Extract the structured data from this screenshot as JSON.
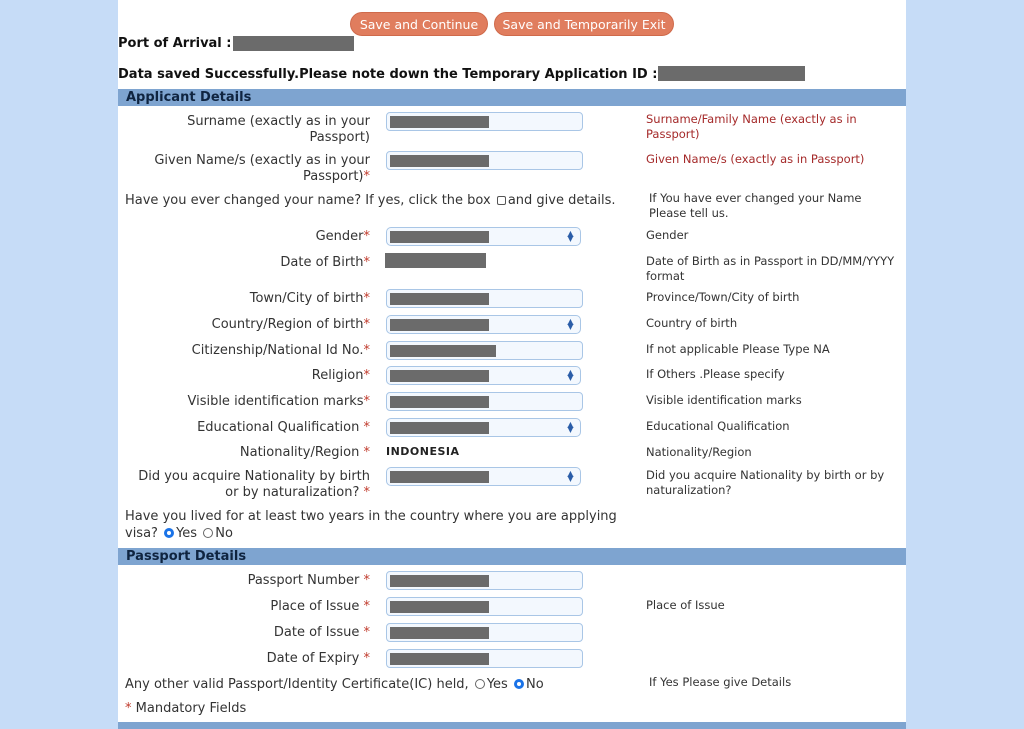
{
  "buttons": {
    "save_continue": "Save and Continue",
    "save_exit": "Save and Temporarily Exit"
  },
  "header": {
    "port_label": "Port of Arrival :",
    "saved_message": "Data saved Successfully.Please note down the Temporary Application ID :"
  },
  "sections": {
    "applicant": "Applicant Details",
    "passport": "Passport Details"
  },
  "applicant": {
    "surname_label": "Surname (exactly as in your Passport)",
    "surname_hint": "Surname/Family Name (exactly as in Passport)",
    "given_label": "Given Name/s (exactly as in your Passport)",
    "given_hint": "Given Name/s (exactly as in Passport)",
    "changed_name_q1": "Have you ever changed your name? If yes, click the box",
    "changed_name_q2": "and give details.",
    "changed_name_hint": "If You have ever changed your Name Please tell us.",
    "gender_label": "Gender",
    "gender_hint": "Gender",
    "dob_label": "Date of Birth",
    "dob_hint": "Date of Birth as in Passport in DD/MM/YYYY format",
    "town_label": "Town/City of birth",
    "town_hint": "Province/Town/City of birth",
    "country_label": "Country/Region of birth",
    "country_hint": "Country of birth",
    "citizen_label": "Citizenship/National Id No.",
    "citizen_hint": "If not applicable Please Type NA",
    "religion_label": "Religion",
    "religion_hint": "If Others .Please specify",
    "marks_label": "Visible identification marks",
    "marks_hint": "Visible identification marks",
    "edu_label": "Educational Qualification",
    "edu_hint": "Educational Qualification",
    "nationality_label": "Nationality/Region",
    "nationality_value": "INDONESIA",
    "nationality_hint": "Nationality/Region",
    "acquire_label1": "Did you acquire Nationality by birth",
    "acquire_label2": "or by naturalization?",
    "acquire_hint": "Did you acquire Nationality by birth or by naturalization?",
    "lived_q1": "Have you lived for at least two years in the country where you are applying",
    "lived_q2": "visa?",
    "yes": "Yes",
    "no": "No"
  },
  "passport": {
    "number_label": "Passport Number",
    "place_label": "Place of Issue",
    "place_hint": "Place of Issue",
    "issue_label": "Date of Issue",
    "expiry_label": "Date of Expiry",
    "other_q": "Any other valid Passport/Identity Certificate(IC) held,",
    "other_hint": "If Yes Please give Details",
    "yes": "Yes",
    "no": "No"
  },
  "footer": {
    "star": "*",
    "mandatory": "Mandatory Fields"
  },
  "required_mark": "*"
}
